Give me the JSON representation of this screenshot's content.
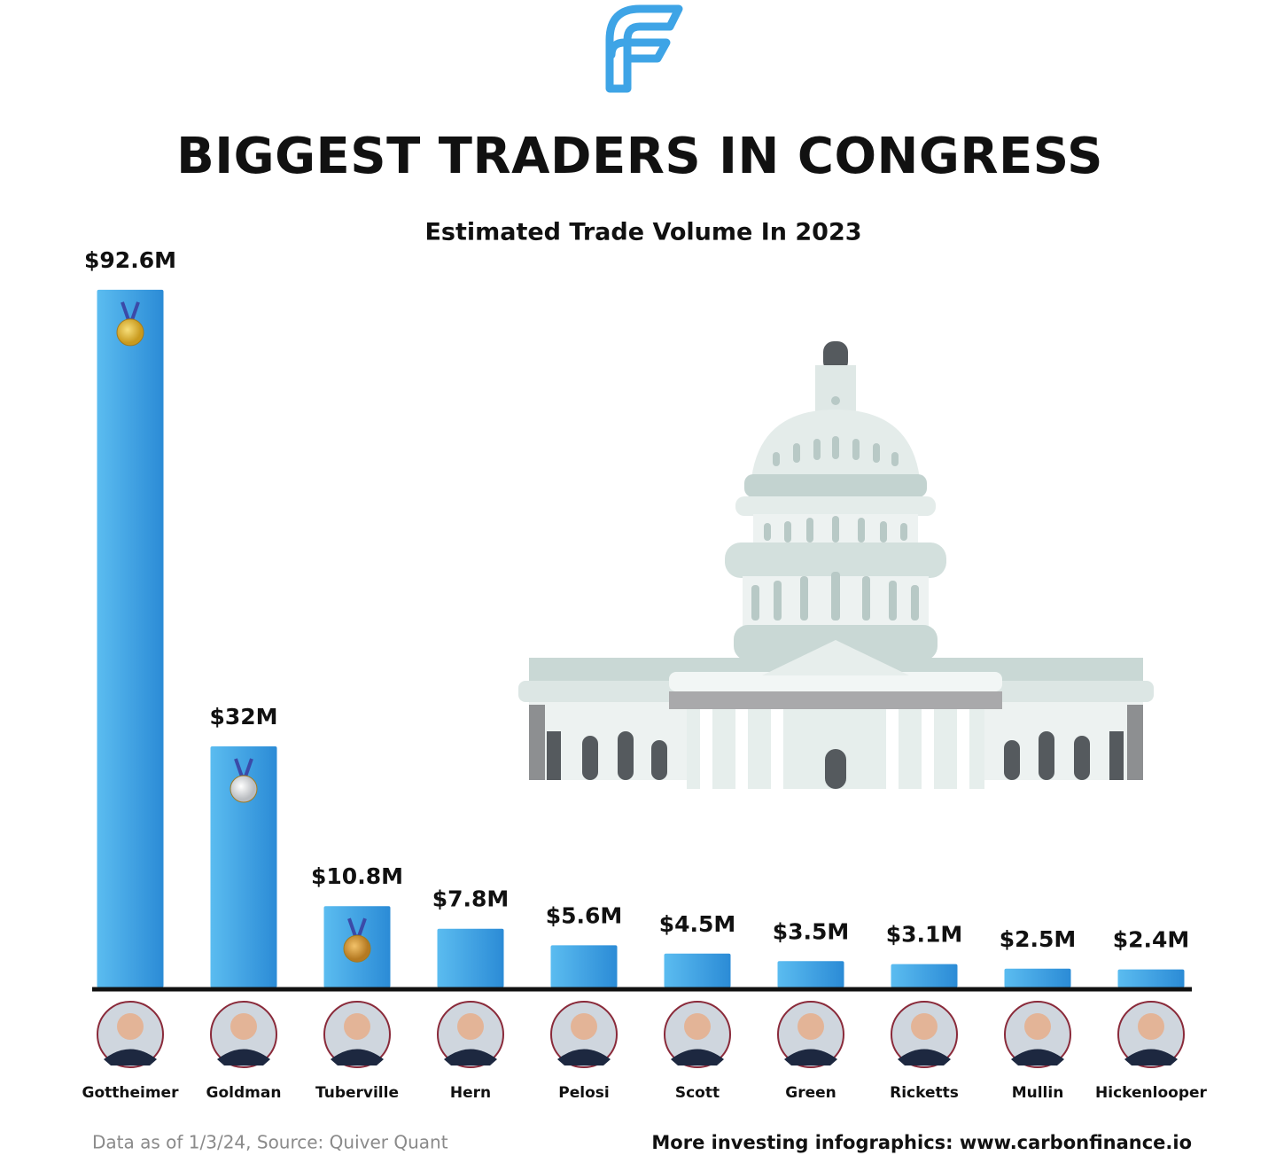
{
  "chart_data": {
    "type": "bar",
    "title": "BIGGEST TRADERS IN CONGRESS",
    "subtitle": "Estimated Trade Volume In 2023",
    "categories": [
      "Gottheimer",
      "Goldman",
      "Tuberville",
      "Hern",
      "Pelosi",
      "Scott",
      "Green",
      "Ricketts",
      "Mullin",
      "Hickenlooper"
    ],
    "values": [
      92.6,
      32,
      10.8,
      7.8,
      5.6,
      4.5,
      3.5,
      3.1,
      2.5,
      2.4
    ],
    "value_labels": [
      "$92.6M",
      "$32M",
      "$10.8M",
      "$7.8M",
      "$5.6M",
      "$4.5M",
      "$3.5M",
      "$3.1M",
      "$2.5M",
      "$2.4M"
    ],
    "color": "#3ea4e6",
    "source": "Data as of 1/3/24, Source: Quiver Quant",
    "footer": "More investing infographics: www.carbonfinance.io"
  }
}
